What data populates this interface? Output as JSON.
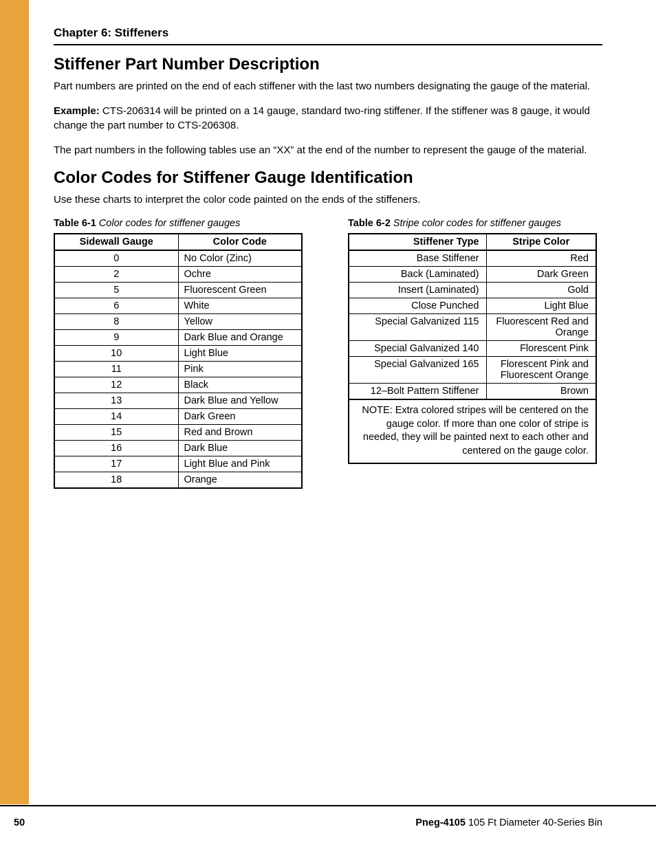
{
  "chapter_header": "Chapter 6: Stiffeners",
  "section1": {
    "title": "Stiffener Part Number Description",
    "p1": "Part numbers are printed on the end of each stiffener with the last two numbers designating the gauge of the material.",
    "example_label": "Example:",
    "example_text": " CTS-206314 will be printed on a 14 gauge, standard two-ring stiffener. If the stiffener was 8 gauge, it would change the part number to CTS-206308.",
    "p3": "The part numbers in the following tables use an “XX” at the end of the number to represent the gauge of the material."
  },
  "section2": {
    "title": "Color Codes for Stiffener Gauge Identification",
    "intro": "Use these charts to interpret the color code painted on the ends of the stiffeners."
  },
  "table1": {
    "number": "Table 6-1",
    "title": " Color codes for stiffener gauges",
    "headers": [
      "Sidewall Gauge",
      "Color Code"
    ],
    "rows": [
      [
        "0",
        "No Color (Zinc)"
      ],
      [
        "2",
        "Ochre"
      ],
      [
        "5",
        "Fluorescent Green"
      ],
      [
        "6",
        "White"
      ],
      [
        "8",
        "Yellow"
      ],
      [
        "9",
        "Dark Blue and Orange"
      ],
      [
        "10",
        "Light Blue"
      ],
      [
        "11",
        "Pink"
      ],
      [
        "12",
        "Black"
      ],
      [
        "13",
        "Dark Blue and Yellow"
      ],
      [
        "14",
        "Dark Green"
      ],
      [
        "15",
        "Red and Brown"
      ],
      [
        "16",
        "Dark Blue"
      ],
      [
        "17",
        "Light Blue and Pink"
      ],
      [
        "18",
        "Orange"
      ]
    ]
  },
  "table2": {
    "number": "Table 6-2",
    "title": " Stripe color codes for stiffener gauges",
    "headers": [
      "Stiffener Type",
      "Stripe Color"
    ],
    "rows": [
      [
        "Base Stiffener",
        "Red"
      ],
      [
        "Back (Laminated)",
        "Dark Green"
      ],
      [
        "Insert (Laminated)",
        "Gold"
      ],
      [
        "Close Punched",
        "Light Blue"
      ],
      [
        "Special Galvanized 115",
        "Fluorescent Red and Orange"
      ],
      [
        "Special Galvanized 140",
        "Florescent Pink"
      ],
      [
        "Special Galvanized 165",
        "Florescent Pink and Fluorescent Orange"
      ],
      [
        "12–Bolt Pattern Stiffener",
        "Brown"
      ]
    ],
    "note": "NOTE: Extra colored stripes will be centered on the gauge color. If more than one color of stripe is needed, they will be painted next to each other and centered on the gauge color."
  },
  "footer": {
    "page": "50",
    "doc_id": "Pneg-4105",
    "doc_title": " 105 Ft Diameter 40-Series Bin"
  },
  "colors": {
    "sidebar": "#e8a33d",
    "text": "#000000",
    "background": "#ffffff"
  }
}
